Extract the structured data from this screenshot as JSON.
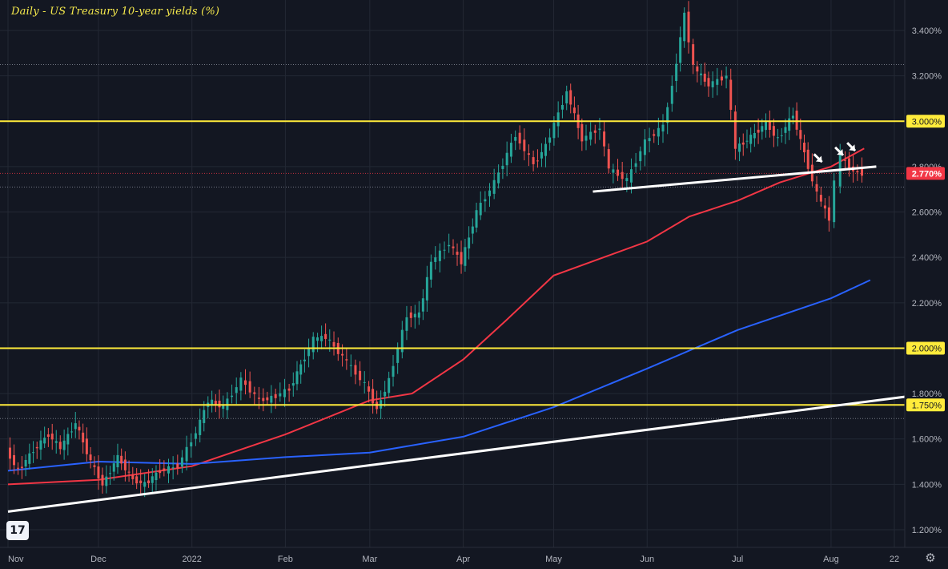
{
  "chart_data": {
    "type": "candlestick",
    "title": "Daily - US Treasury 10-year yields (%)",
    "xlabel": "",
    "ylabel": "",
    "y_unit": "%",
    "ylim": [
      1.2,
      3.5
    ],
    "grid": true,
    "y_ticks": [
      "1.200%",
      "1.400%",
      "1.600%",
      "1.800%",
      "2.200%",
      "2.400%",
      "2.600%",
      "2.800%",
      "3.200%",
      "3.400%"
    ],
    "x_ticks": [
      "Nov",
      "Dec",
      "2022",
      "Feb",
      "Mar",
      "Apr",
      "May",
      "Jun",
      "Jul",
      "Aug",
      "22"
    ],
    "x_tick_dates": [
      "2021-11-01",
      "2021-12-01",
      "2022-01-01",
      "2022-02-01",
      "2022-03-01",
      "2022-04-01",
      "2022-05-01",
      "2022-06-01",
      "2022-07-01",
      "2022-08-01",
      "2022-08-22"
    ],
    "x_range": [
      "2021-11-01",
      "2022-08-30"
    ],
    "highlighted_levels": [
      {
        "label": "3.000%",
        "value": 3.0,
        "color": "#ffeb3b"
      },
      {
        "label": "2.000%",
        "value": 2.0,
        "color": "#ffeb3b"
      },
      {
        "label": "1.750%",
        "value": 1.75,
        "color": "#ffeb3b"
      }
    ],
    "last_price": {
      "label": "2.770%",
      "value": 2.77,
      "color": "#f23645"
    },
    "dotted_levels": [
      2.77,
      2.71,
      3.25,
      1.69
    ],
    "moving_averages": [
      {
        "color": "#f23645",
        "points": [
          [
            "2021-11-01",
            1.4
          ],
          [
            "2021-12-01",
            1.42
          ],
          [
            "2022-01-01",
            1.48
          ],
          [
            "2022-02-01",
            1.62
          ],
          [
            "2022-03-01",
            1.77
          ],
          [
            "2022-03-15",
            1.8
          ],
          [
            "2022-04-01",
            1.95
          ],
          [
            "2022-04-15",
            2.12
          ],
          [
            "2022-05-01",
            2.32
          ],
          [
            "2022-06-01",
            2.47
          ],
          [
            "2022-06-15",
            2.58
          ],
          [
            "2022-07-01",
            2.65
          ],
          [
            "2022-07-15",
            2.73
          ],
          [
            "2022-08-01",
            2.8
          ],
          [
            "2022-08-12",
            2.88
          ]
        ]
      },
      {
        "color": "#2962ff",
        "points": [
          [
            "2021-11-01",
            1.46
          ],
          [
            "2021-12-01",
            1.5
          ],
          [
            "2022-01-01",
            1.49
          ],
          [
            "2022-02-01",
            1.52
          ],
          [
            "2022-03-01",
            1.54
          ],
          [
            "2022-04-01",
            1.61
          ],
          [
            "2022-05-01",
            1.74
          ],
          [
            "2022-06-01",
            1.91
          ],
          [
            "2022-07-01",
            2.08
          ],
          [
            "2022-08-01",
            2.22
          ],
          [
            "2022-08-14",
            2.3
          ]
        ]
      }
    ],
    "trendlines": [
      {
        "color": "#ffffff",
        "start": [
          "2021-11-01",
          1.28
        ],
        "end": [
          "2022-08-28",
          1.79
        ]
      },
      {
        "color": "#ffffff",
        "start": [
          "2022-05-14",
          2.69
        ],
        "end": [
          "2022-08-16",
          2.8
        ]
      }
    ],
    "arrows": [
      {
        "date": "2022-07-29",
        "value": 2.82
      },
      {
        "date": "2022-08-05",
        "value": 2.85
      },
      {
        "date": "2022-08-09",
        "value": 2.87
      }
    ],
    "closes": [
      [
        "2021-11-01",
        1.55
      ],
      [
        "2021-11-05",
        1.46
      ],
      [
        "2021-11-10",
        1.55
      ],
      [
        "2021-11-15",
        1.62
      ],
      [
        "2021-11-19",
        1.56
      ],
      [
        "2021-11-24",
        1.67
      ],
      [
        "2021-11-29",
        1.5
      ],
      [
        "2021-12-03",
        1.4
      ],
      [
        "2021-12-08",
        1.52
      ],
      [
        "2021-12-13",
        1.42
      ],
      [
        "2021-12-17",
        1.4
      ],
      [
        "2021-12-22",
        1.46
      ],
      [
        "2021-12-28",
        1.48
      ],
      [
        "2022-01-03",
        1.63
      ],
      [
        "2022-01-07",
        1.77
      ],
      [
        "2022-01-12",
        1.74
      ],
      [
        "2022-01-18",
        1.86
      ],
      [
        "2022-01-24",
        1.77
      ],
      [
        "2022-01-28",
        1.78
      ],
      [
        "2022-02-03",
        1.82
      ],
      [
        "2022-02-08",
        1.96
      ],
      [
        "2022-02-11",
        2.04
      ],
      [
        "2022-02-15",
        2.05
      ],
      [
        "2022-02-22",
        1.94
      ],
      [
        "2022-02-28",
        1.84
      ],
      [
        "2022-03-04",
        1.73
      ],
      [
        "2022-03-08",
        1.86
      ],
      [
        "2022-03-14",
        2.14
      ],
      [
        "2022-03-18",
        2.15
      ],
      [
        "2022-03-22",
        2.38
      ],
      [
        "2022-03-28",
        2.46
      ],
      [
        "2022-04-01",
        2.38
      ],
      [
        "2022-04-06",
        2.6
      ],
      [
        "2022-04-12",
        2.73
      ],
      [
        "2022-04-19",
        2.94
      ],
      [
        "2022-04-25",
        2.81
      ],
      [
        "2022-04-29",
        2.89
      ],
      [
        "2022-05-06",
        3.13
      ],
      [
        "2022-05-11",
        2.92
      ],
      [
        "2022-05-17",
        2.97
      ],
      [
        "2022-05-20",
        2.79
      ],
      [
        "2022-05-26",
        2.74
      ],
      [
        "2022-06-01",
        2.91
      ],
      [
        "2022-06-07",
        2.98
      ],
      [
        "2022-06-10",
        3.16
      ],
      [
        "2022-06-14",
        3.47
      ],
      [
        "2022-06-17",
        3.24
      ],
      [
        "2022-06-22",
        3.16
      ],
      [
        "2022-06-28",
        3.2
      ],
      [
        "2022-07-01",
        2.88
      ],
      [
        "2022-07-06",
        2.93
      ],
      [
        "2022-07-11",
        2.99
      ],
      [
        "2022-07-15",
        2.92
      ],
      [
        "2022-07-20",
        3.03
      ],
      [
        "2022-07-25",
        2.8
      ],
      [
        "2022-07-28",
        2.68
      ],
      [
        "2022-08-01",
        2.57
      ],
      [
        "2022-08-03",
        2.73
      ],
      [
        "2022-08-05",
        2.84
      ],
      [
        "2022-08-09",
        2.78
      ],
      [
        "2022-08-12",
        2.77
      ]
    ]
  },
  "branding": {
    "logo_text": "17"
  }
}
